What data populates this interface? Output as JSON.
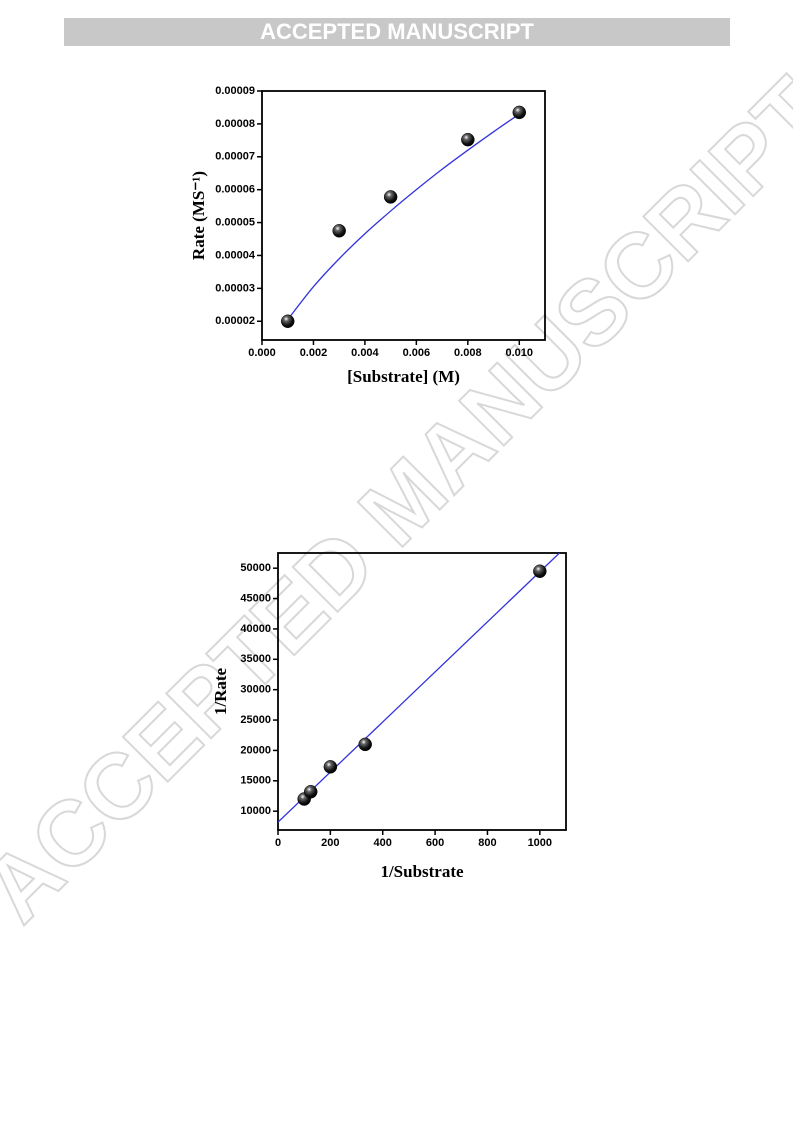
{
  "header": {
    "banner": "ACCEPTED MANUSCRIPT"
  },
  "watermark": "ACCEPTED MANUSCRIPT",
  "chart_data": [
    {
      "type": "scatter",
      "x_label": "[Substrate] (M)",
      "y_label": "Rate (MS⁻¹)",
      "xlim": [
        0,
        0.011
      ],
      "ylim": [
        1.43e-05,
        9e-05
      ],
      "xticks": [
        {
          "value": 0,
          "label": "0.000"
        },
        {
          "value": 0.002,
          "label": "0.002"
        },
        {
          "value": 0.004,
          "label": "0.004"
        },
        {
          "value": 0.006,
          "label": "0.006"
        },
        {
          "value": 0.008,
          "label": "0.008"
        },
        {
          "value": 0.01,
          "label": "0.010"
        }
      ],
      "yticks": [
        2e-05,
        3e-05,
        4e-05,
        5e-05,
        6e-05,
        7e-05,
        8e-05,
        9e-05
      ],
      "series": [
        {
          "color": "#000000",
          "x": [
            0.001,
            0.003,
            0.005,
            0.008,
            0.01
          ],
          "values": [
            2e-05,
            4.75e-05,
            5.78e-05,
            7.52e-05,
            8.35e-05
          ]
        }
      ],
      "fit": {
        "color": "#3333dd",
        "x": [
          0.001,
          0.002,
          0.003,
          0.004,
          0.005,
          0.006,
          0.007,
          0.008,
          0.009,
          0.01
        ],
        "values": [
          2.05e-05,
          3.05e-05,
          3.9e-05,
          4.66e-05,
          5.35e-05,
          6e-05,
          6.62e-05,
          7.2e-05,
          7.76e-05,
          8.3e-05
        ]
      }
    },
    {
      "type": "scatter",
      "x_label": "1/Substrate",
      "y_label": "1/Rate",
      "xlim": [
        0,
        1100
      ],
      "ylim": [
        6900,
        52500
      ],
      "xticks": [
        0,
        200,
        400,
        600,
        800,
        1000
      ],
      "yticks": [
        10000,
        15000,
        20000,
        25000,
        30000,
        35000,
        40000,
        45000,
        50000
      ],
      "series": [
        {
          "color": "#000000",
          "x": [
            100,
            125,
            200,
            333,
            1000
          ],
          "values": [
            12000,
            13200,
            17300,
            21000,
            49500
          ]
        }
      ],
      "fit": {
        "color": "#3333dd",
        "x": [
          0,
          1075
        ],
        "values": [
          8200,
          52500
        ]
      }
    }
  ]
}
